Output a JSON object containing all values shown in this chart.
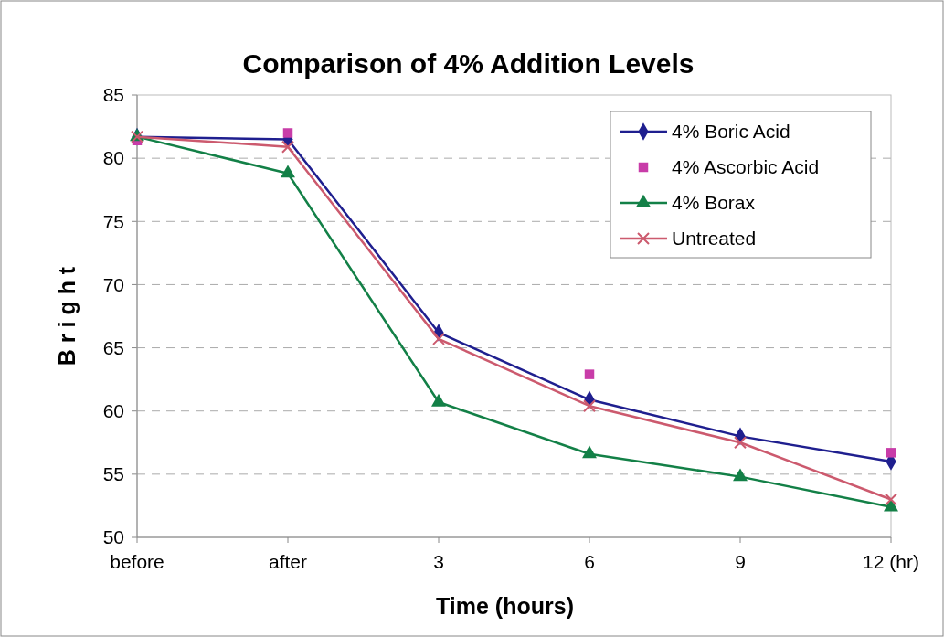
{
  "chart_data": {
    "type": "line",
    "title": "Comparison of 4% Addition Levels",
    "xlabel": "Time (hours)",
    "ylabel": "B r i g h t",
    "categories": [
      "before",
      "after",
      "3",
      "6",
      "9",
      "12 (hr)"
    ],
    "series": [
      {
        "name": "4% Boric Acid",
        "color": "#1f1f8f",
        "marker": "diamond",
        "values": [
          81.7,
          81.5,
          66.2,
          60.9,
          58.0,
          56.0
        ]
      },
      {
        "name": "4% Ascorbic Acid",
        "type": "scatter",
        "color": "#c83ca8",
        "marker": "square",
        "values": [
          81.4,
          82.0,
          null,
          62.9,
          null,
          56.7
        ]
      },
      {
        "name": "4% Borax",
        "color": "#138047",
        "marker": "triangle",
        "values": [
          81.7,
          78.8,
          60.7,
          56.6,
          54.8,
          52.4
        ]
      },
      {
        "name": "Untreated",
        "color": "#cc5a6e",
        "marker": "cross",
        "values": [
          81.7,
          80.9,
          65.7,
          60.4,
          57.5,
          53.0
        ]
      }
    ],
    "ylim": [
      50,
      85
    ],
    "yticks": [
      50,
      55,
      60,
      65,
      70,
      75,
      80,
      85
    ],
    "grid": "y",
    "legend": "top right"
  }
}
